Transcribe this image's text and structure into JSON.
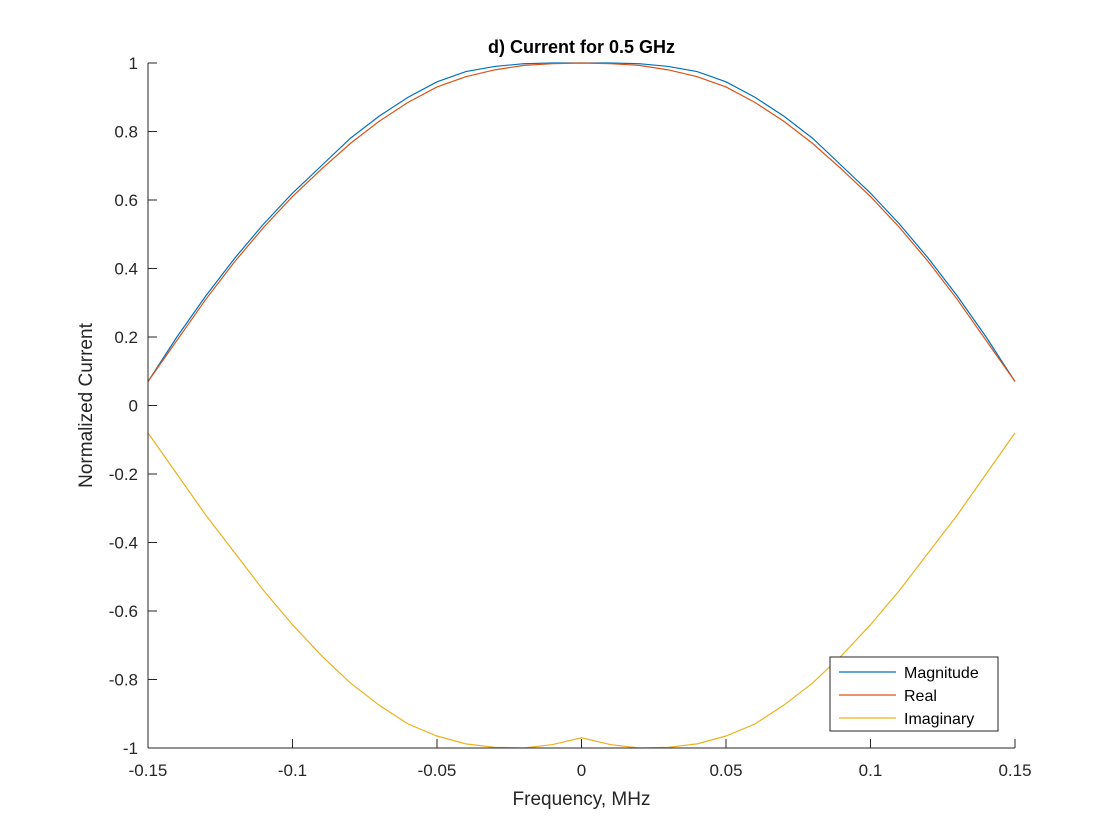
{
  "chart_data": {
    "type": "line",
    "title": "d) Current for 0.5 GHz",
    "xlabel": "Frequency, MHz",
    "ylabel": "Normalized Current",
    "xlim": [
      -0.15,
      0.15
    ],
    "ylim": [
      -1,
      1
    ],
    "xticks": [
      -0.15,
      -0.1,
      -0.05,
      0,
      0.05,
      0.1,
      0.15
    ],
    "xtick_labels": [
      "-0.15",
      "-0.1",
      "-0.05",
      "0",
      "0.05",
      "0.1",
      "0.15"
    ],
    "yticks": [
      1,
      0.8,
      0.6,
      0.4,
      0.2,
      0,
      -0.2,
      -0.4,
      -0.6,
      -0.8,
      -1
    ],
    "ytick_labels": [
      "1",
      "0.8",
      "0.6",
      "0.4",
      "0.2",
      "0",
      "-0.2",
      "-0.4",
      "-0.6",
      "-0.8",
      "-1"
    ],
    "grid": false,
    "legend_position": "bottom-right",
    "x": [
      -0.15,
      -0.14,
      -0.13,
      -0.12,
      -0.11,
      -0.1,
      -0.09,
      -0.08,
      -0.07,
      -0.06,
      -0.05,
      -0.04,
      -0.03,
      -0.02,
      -0.01,
      0,
      0.01,
      0.02,
      0.03,
      0.04,
      0.05,
      0.06,
      0.07,
      0.08,
      0.09,
      0.1,
      0.11,
      0.12,
      0.13,
      0.14,
      0.15
    ],
    "series": [
      {
        "name": "Magnitude",
        "color": "#0072BD",
        "values": [
          0.07,
          0.2,
          0.32,
          0.43,
          0.53,
          0.62,
          0.7,
          0.78,
          0.845,
          0.9,
          0.945,
          0.975,
          0.99,
          0.998,
          1.0,
          1.0,
          1.0,
          0.998,
          0.99,
          0.975,
          0.945,
          0.9,
          0.845,
          0.78,
          0.7,
          0.62,
          0.53,
          0.43,
          0.32,
          0.2,
          0.07
        ]
      },
      {
        "name": "Real",
        "color": "#D95319",
        "values": [
          0.07,
          0.19,
          0.31,
          0.42,
          0.52,
          0.61,
          0.69,
          0.765,
          0.83,
          0.885,
          0.93,
          0.96,
          0.98,
          0.993,
          0.998,
          1.0,
          0.998,
          0.993,
          0.98,
          0.96,
          0.93,
          0.885,
          0.83,
          0.765,
          0.69,
          0.61,
          0.52,
          0.42,
          0.31,
          0.19,
          0.07
        ]
      },
      {
        "name": "Imaginary",
        "color": "#EDB120",
        "values": [
          -0.08,
          -0.2,
          -0.32,
          -0.43,
          -0.54,
          -0.64,
          -0.73,
          -0.81,
          -0.875,
          -0.93,
          -0.965,
          -0.988,
          -0.998,
          -1.0,
          -0.99,
          -0.97,
          -0.99,
          -1.0,
          -0.998,
          -0.988,
          -0.965,
          -0.93,
          -0.875,
          -0.81,
          -0.73,
          -0.64,
          -0.54,
          -0.43,
          -0.32,
          -0.2,
          -0.08
        ]
      }
    ]
  }
}
